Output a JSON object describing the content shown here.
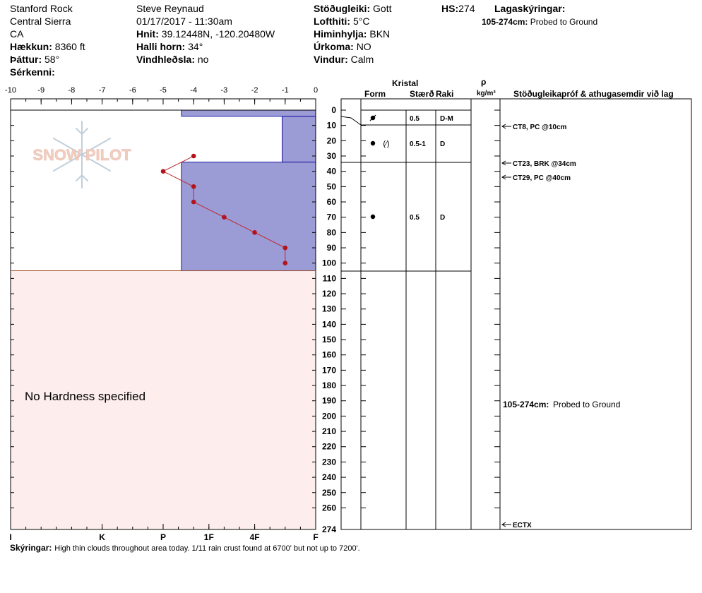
{
  "header": {
    "location": "Stanford Rock",
    "range": "Central Sierra",
    "state": "CA",
    "elevation_label": "Hækkun:",
    "elevation_value": "8360 ft",
    "aspect_label": "Þáttur:",
    "aspect_value": "58°",
    "features_label": "Sérkenni:",
    "observer": "Steve Reynaud",
    "datetime": "01/17/2017 - 11:30am",
    "coords_label": "Hnit:",
    "coords_value": "39.12448N, -120.20480W",
    "slope_label": "Halli horn:",
    "slope_value": "34°",
    "wind_loading_label": "Vindhleðsla:",
    "wind_loading_value": "no",
    "stability_label": "Stöðugleiki:",
    "stability_value": "Gott",
    "air_temp_label": "Lofthiti:",
    "air_temp_value": "5°C",
    "sky_label": "Himinhylja:",
    "sky_value": "BKN",
    "precip_label": "Úrkoma:",
    "precip_value": "NO",
    "wind_label": "Vindur:",
    "wind_value": "Calm",
    "hs_label": "HS:",
    "hs_value": "274",
    "layer_comments_label": "Lagaskýringar:",
    "layer_comment_range": "105-274cm:",
    "layer_comment_text": "Probed to Ground"
  },
  "columns": {
    "crystal": "Kristal",
    "form": "Form",
    "size": "Stærð",
    "moisture": "Raki",
    "rho": "ρ",
    "density_unit": "kg/m³",
    "tests": "Stöðugleikapróf & athugasemdir við lag"
  },
  "no_hardness": "No Hardness specified",
  "logo_text": "SNOW PILOT",
  "comments_label": "Skýringar:",
  "comments_text": "High thin clouds throughout area today.  1/11 rain crust found at 6700' but not up to 7200'.",
  "chart_data": {
    "type": "snow-profile",
    "temperature_axis": {
      "ticks": [
        -10,
        -9,
        -8,
        -7,
        -6,
        -5,
        -4,
        -3,
        -2,
        -1,
        0
      ],
      "labels": [
        "-10",
        "-9",
        "-8",
        "-7",
        "-6",
        "-5",
        "-4",
        "-3",
        "-2",
        "-1",
        "0"
      ],
      "range": [
        -10,
        0
      ]
    },
    "depth_axis": {
      "range": [
        0,
        274
      ],
      "ticks": [
        0,
        10,
        20,
        30,
        40,
        50,
        60,
        70,
        80,
        90,
        100,
        110,
        120,
        130,
        140,
        150,
        160,
        170,
        180,
        190,
        200,
        210,
        220,
        230,
        240,
        250,
        260,
        274
      ],
      "labels": [
        "0",
        "10",
        "20",
        "30",
        "40",
        "50",
        "60",
        "70",
        "80",
        "90",
        "100",
        "110",
        "120",
        "130",
        "140",
        "150",
        "160",
        "170",
        "180",
        "190",
        "200",
        "210",
        "220",
        "230",
        "240",
        "250",
        "260",
        "274"
      ]
    },
    "hardness_axis": {
      "labels": [
        "I",
        "K",
        "P",
        "1F",
        "4F",
        "F"
      ],
      "values": [
        -10,
        -7,
        -5,
        -3.5,
        -2,
        0
      ]
    },
    "hardness_layers": [
      {
        "top": 0,
        "bottom": 4,
        "value": -4.4
      },
      {
        "top": 4,
        "bottom": 34,
        "value": -1.1
      },
      {
        "top": 34,
        "bottom": 105,
        "value": -4.4
      }
    ],
    "temperature_profile": [
      {
        "depth": 30,
        "temp": -4
      },
      {
        "depth": 40,
        "temp": -5
      },
      {
        "depth": 50,
        "temp": -4
      },
      {
        "depth": 60,
        "temp": -4
      },
      {
        "depth": 70,
        "temp": -3
      },
      {
        "depth": 80,
        "temp": -2
      },
      {
        "depth": 90,
        "temp": -1
      },
      {
        "depth": 100,
        "temp": -1
      }
    ],
    "layer_boundaries": [
      0,
      4,
      10,
      34,
      105
    ],
    "layers": [
      {
        "depth": 4,
        "size": "0.5",
        "moisture": "D-M",
        "form": "melt-freeze"
      },
      {
        "depth": 22,
        "size": "0.5-1",
        "moisture": "D",
        "form": "rounded-decomposing"
      },
      {
        "depth": 70,
        "size": "0.5",
        "moisture": "D",
        "form": "rounded"
      }
    ],
    "tests": [
      {
        "depth": 10,
        "label": "CT8, PC @10cm"
      },
      {
        "depth": 34,
        "label": "CT23, BRK @34cm"
      },
      {
        "depth": 40,
        "label": "CT29, PC @40cm"
      },
      {
        "depth": 274,
        "label": "ECTX"
      }
    ],
    "layer_comment": {
      "depth": 190,
      "range": "105-274cm:",
      "text": "Probed to Ground"
    }
  }
}
